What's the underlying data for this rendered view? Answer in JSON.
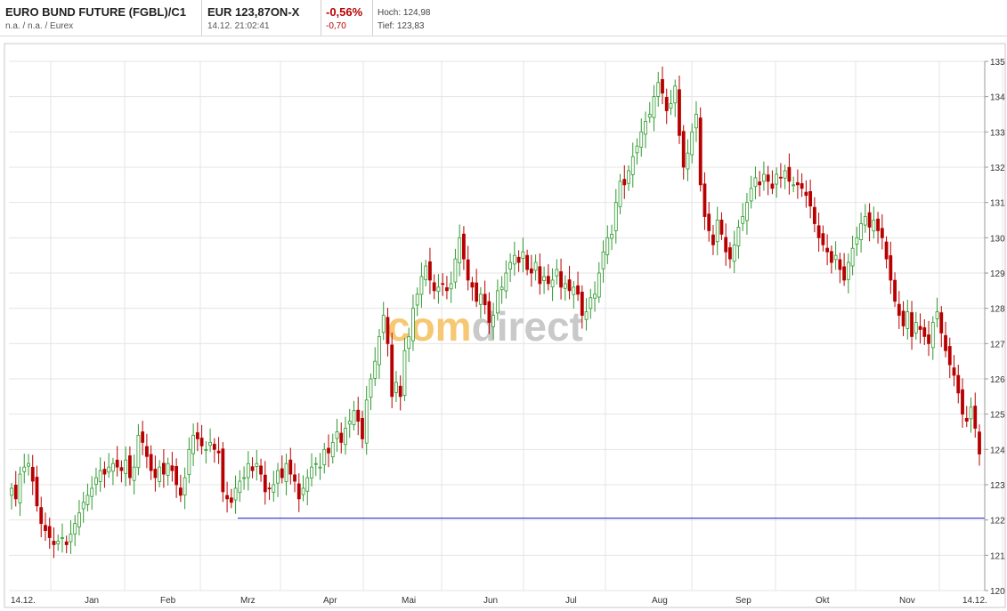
{
  "header": {
    "title": "EURO BUND FUTURE (FGBL)/C1",
    "subtitle": "n.a. / n.a. / Eurex",
    "price": "EUR 123,87ON-X",
    "datetime": "14.12. 21:02:41",
    "change_pct": "-0,56%",
    "change_abs": "-0,70",
    "high_label": "Hoch:",
    "high_value": "124,98",
    "low_label": "Tief:",
    "low_value": "123,83"
  },
  "watermark": {
    "part1": "com",
    "part2": "direct",
    "color1": "#f6c873",
    "color2": "#c9c9c9"
  },
  "colors": {
    "up": "#2e9a2e",
    "down": "#b80000",
    "support": "#1a1ad0",
    "grid": "#e4e4e4"
  },
  "chart_data": {
    "type": "candlestick",
    "x_labels": [
      "14.12.",
      "Jan",
      "Feb",
      "Mrz",
      "Apr",
      "Mai",
      "Jun",
      "Jul",
      "Aug",
      "Sep",
      "Okt",
      "Nov",
      "14.12."
    ],
    "y_ticks": [
      120,
      121,
      122,
      123,
      124,
      125,
      126,
      127,
      128,
      129,
      130,
      131,
      132,
      133,
      134,
      135
    ],
    "ylim": [
      120,
      135
    ],
    "support_line": {
      "y": 122.05,
      "from": "Mrz",
      "to": "14.12."
    },
    "closes": [
      122.9,
      122.6,
      123.3,
      123.5,
      123.6,
      123.1,
      122.4,
      121.9,
      121.7,
      121.5,
      121.3,
      121.4,
      121.5,
      121.3,
      121.6,
      121.9,
      122.2,
      122.5,
      122.7,
      122.9,
      123.2,
      123.4,
      123.3,
      123.5,
      123.6,
      123.5,
      123.4,
      123.7,
      123.2,
      123.5,
      124.4,
      124.2,
      123.8,
      123.4,
      123.2,
      123.5,
      123.3,
      123.6,
      123.4,
      123.0,
      122.7,
      123.2,
      124.0,
      124.4,
      124.3,
      124.1,
      124.0,
      124.2,
      124.0,
      123.9,
      122.8,
      122.6,
      122.5,
      122.9,
      123.1,
      123.2,
      123.6,
      123.4,
      123.6,
      123.3,
      122.8,
      122.9,
      123.0,
      123.4,
      123.2,
      123.6,
      123.3,
      123.1,
      122.6,
      122.9,
      123.2,
      123.5,
      123.6,
      123.5,
      124.0,
      123.9,
      124.2,
      124.5,
      124.2,
      124.6,
      124.8,
      125.1,
      124.8,
      124.3,
      125.4,
      126.0,
      126.5,
      127.2,
      127.8,
      127.0,
      125.5,
      125.9,
      125.5,
      126.8,
      127.2,
      128.0,
      128.4,
      128.9,
      129.2,
      128.8,
      128.5,
      128.6,
      128.7,
      128.5,
      128.7,
      129.4,
      130.0,
      129.4,
      128.8,
      128.6,
      128.2,
      128.4,
      128.1,
      127.6,
      127.8,
      128.5,
      128.6,
      129.0,
      129.3,
      129.5,
      129.3,
      129.6,
      129.1,
      129.0,
      129.3,
      128.7,
      128.9,
      128.7,
      128.8,
      129.1,
      128.6,
      128.7,
      128.5,
      128.6,
      128.4,
      127.8,
      127.9,
      128.3,
      128.4,
      129.0,
      129.6,
      130.0,
      130.1,
      131.0,
      131.6,
      131.5,
      131.9,
      132.3,
      132.6,
      133.0,
      133.3,
      133.5,
      134.0,
      134.4,
      134.1,
      133.6,
      133.8,
      134.3,
      132.9,
      132.0,
      132.4,
      133.0,
      133.5,
      131.5,
      130.6,
      130.2,
      129.8,
      130.5,
      130.1,
      129.6,
      129.4,
      129.8,
      130.3,
      130.6,
      131.0,
      131.4,
      131.7,
      131.5,
      131.8,
      131.6,
      131.4,
      131.8,
      131.7,
      131.9,
      131.6,
      131.5,
      131.5,
      131.4,
      131.2,
      130.9,
      130.4,
      130.0,
      129.8,
      129.6,
      129.3,
      129.5,
      129.1,
      128.8,
      129.3,
      129.7,
      130.0,
      130.4,
      130.6,
      130.3,
      130.5,
      130.2,
      130.0,
      129.4,
      128.8,
      128.2,
      127.8,
      127.5,
      127.9,
      127.2,
      127.6,
      127.4,
      127.2,
      127.0,
      127.6,
      127.9,
      127.3,
      126.8,
      126.4,
      126.1,
      125.6,
      125.0,
      124.8,
      125.2,
      124.6,
      123.87
    ]
  }
}
